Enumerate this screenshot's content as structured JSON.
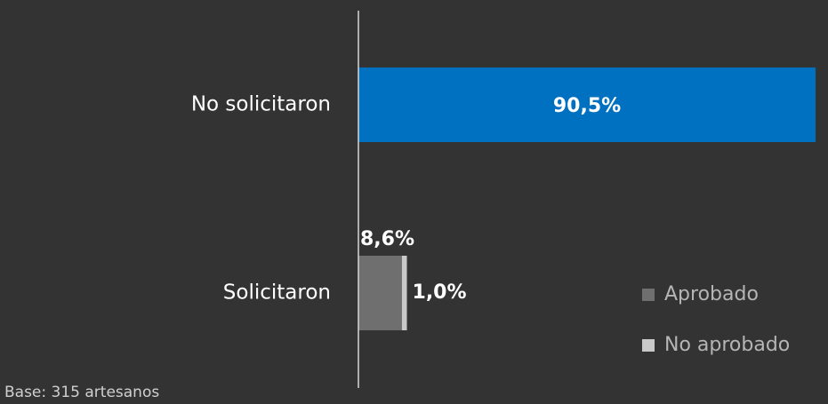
{
  "chart_data": {
    "type": "stacked_barh",
    "categories": [
      "No solicitaron",
      "Solicitaron"
    ],
    "series": [
      {
        "color": "#0070c0",
        "values": [
          90.5,
          null
        ],
        "value_labels": [
          "90,5%",
          null
        ]
      },
      {
        "name": "Aprobado",
        "color": "#6f6f6f",
        "values": [
          null,
          8.6
        ],
        "value_labels": [
          null,
          "8,6%"
        ]
      },
      {
        "name": "No aprobado",
        "color": "#c9c9c9",
        "values": [
          null,
          1.0
        ],
        "value_labels": [
          null,
          "1,0%"
        ]
      }
    ],
    "xlim": [
      0,
      100
    ],
    "legend": "lower right",
    "footnote": "Base: 315 artesanos"
  }
}
